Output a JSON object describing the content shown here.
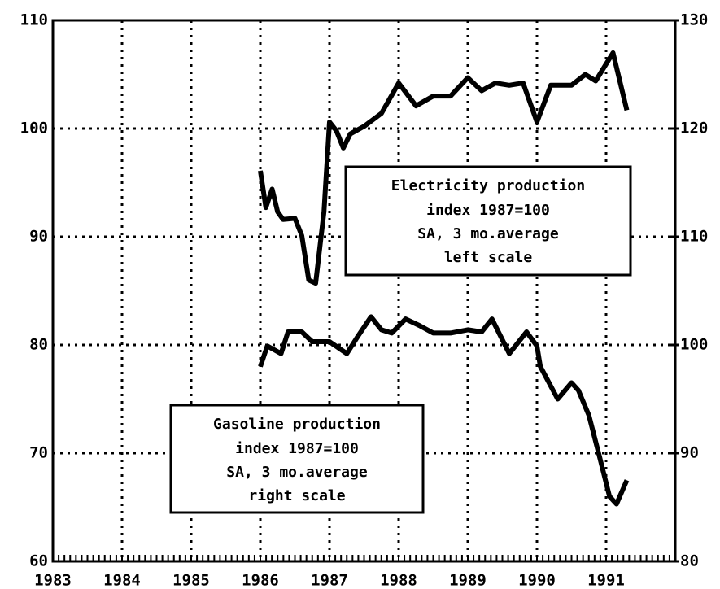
{
  "chart_data": {
    "type": "line",
    "xlim": [
      1983,
      1992
    ],
    "xticks": [
      1983,
      1984,
      1985,
      1986,
      1987,
      1988,
      1989,
      1990,
      1991
    ],
    "ylim": [
      60,
      110
    ],
    "yticks": [
      60,
      70,
      80,
      90,
      100,
      110
    ],
    "y2lim": [
      80,
      130
    ],
    "y2ticks": [
      80,
      90,
      100,
      110,
      120,
      130
    ],
    "grid": true,
    "series": [
      {
        "name": "Electricity production",
        "label_lines": [
          "index 1987=100",
          "SA, 3 mo.average",
          "left scale"
        ],
        "color": "#000000",
        "x": [
          1986.0,
          1986.08,
          1986.17,
          1986.25,
          1986.33,
          1986.5,
          1986.6,
          1986.7,
          1986.8,
          1986.92,
          1987.0,
          1987.1,
          1987.2,
          1987.3,
          1987.5,
          1987.75,
          1988.0,
          1988.25,
          1988.5,
          1988.75,
          1989.0,
          1989.2,
          1989.4,
          1989.6,
          1989.8,
          1990.0,
          1990.2,
          1990.5,
          1990.7,
          1990.85,
          1991.1,
          1991.3
        ],
        "values": [
          96.1,
          92.7,
          94.4,
          92.3,
          91.6,
          91.7,
          90.1,
          86.0,
          85.7,
          92.3,
          100.6,
          99.8,
          98.2,
          99.5,
          100.2,
          101.4,
          104.2,
          102.1,
          103.0,
          103.0,
          104.7,
          103.5,
          104.2,
          104.0,
          104.2,
          100.6,
          104.0,
          104.0,
          105.0,
          104.4,
          107.0,
          101.7
        ]
      },
      {
        "name": "Gasoline production",
        "label_lines": [
          "index 1987=100",
          "SA, 3 mo.average",
          "right scale"
        ],
        "color": "#000000",
        "axis": "y2",
        "x": [
          1986.0,
          1986.1,
          1986.3,
          1986.4,
          1986.6,
          1986.75,
          1987.0,
          1987.25,
          1987.4,
          1987.6,
          1987.75,
          1987.9,
          1988.1,
          1988.3,
          1988.5,
          1988.75,
          1989.0,
          1989.2,
          1989.35,
          1989.6,
          1989.85,
          1990.0,
          1990.05,
          1990.3,
          1990.5,
          1990.6,
          1990.75,
          1990.9,
          1991.05,
          1991.15,
          1991.3
        ],
        "values": [
          98.0,
          99.9,
          99.2,
          101.2,
          101.2,
          100.3,
          100.3,
          99.2,
          100.7,
          102.6,
          101.4,
          101.1,
          102.4,
          101.8,
          101.1,
          101.1,
          101.4,
          101.2,
          102.4,
          99.2,
          101.2,
          99.9,
          98.0,
          95.0,
          96.5,
          95.8,
          93.5,
          89.8,
          86.0,
          85.3,
          87.5
        ]
      }
    ]
  }
}
